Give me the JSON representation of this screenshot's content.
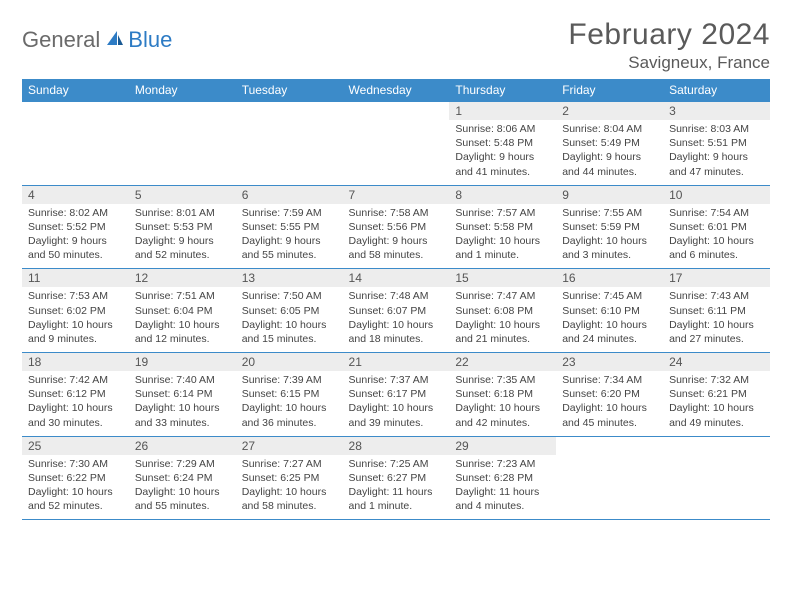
{
  "logo": {
    "part1": "General",
    "part2": "Blue"
  },
  "title": "February 2024",
  "location": "Savigneux, France",
  "colors": {
    "header_bg": "#3c8bc9",
    "header_text": "#ffffff",
    "daynum_bg": "#ededed",
    "text": "#444444",
    "logo_gray": "#6a6a6a",
    "logo_blue": "#2d7bc4",
    "rule": "#3c8bc9"
  },
  "day_headers": [
    "Sunday",
    "Monday",
    "Tuesday",
    "Wednesday",
    "Thursday",
    "Friday",
    "Saturday"
  ],
  "weeks": [
    [
      {
        "n": "",
        "sr": "",
        "ss": "",
        "dl": ""
      },
      {
        "n": "",
        "sr": "",
        "ss": "",
        "dl": ""
      },
      {
        "n": "",
        "sr": "",
        "ss": "",
        "dl": ""
      },
      {
        "n": "",
        "sr": "",
        "ss": "",
        "dl": ""
      },
      {
        "n": "1",
        "sr": "Sunrise: 8:06 AM",
        "ss": "Sunset: 5:48 PM",
        "dl": "Daylight: 9 hours and 41 minutes."
      },
      {
        "n": "2",
        "sr": "Sunrise: 8:04 AM",
        "ss": "Sunset: 5:49 PM",
        "dl": "Daylight: 9 hours and 44 minutes."
      },
      {
        "n": "3",
        "sr": "Sunrise: 8:03 AM",
        "ss": "Sunset: 5:51 PM",
        "dl": "Daylight: 9 hours and 47 minutes."
      }
    ],
    [
      {
        "n": "4",
        "sr": "Sunrise: 8:02 AM",
        "ss": "Sunset: 5:52 PM",
        "dl": "Daylight: 9 hours and 50 minutes."
      },
      {
        "n": "5",
        "sr": "Sunrise: 8:01 AM",
        "ss": "Sunset: 5:53 PM",
        "dl": "Daylight: 9 hours and 52 minutes."
      },
      {
        "n": "6",
        "sr": "Sunrise: 7:59 AM",
        "ss": "Sunset: 5:55 PM",
        "dl": "Daylight: 9 hours and 55 minutes."
      },
      {
        "n": "7",
        "sr": "Sunrise: 7:58 AM",
        "ss": "Sunset: 5:56 PM",
        "dl": "Daylight: 9 hours and 58 minutes."
      },
      {
        "n": "8",
        "sr": "Sunrise: 7:57 AM",
        "ss": "Sunset: 5:58 PM",
        "dl": "Daylight: 10 hours and 1 minute."
      },
      {
        "n": "9",
        "sr": "Sunrise: 7:55 AM",
        "ss": "Sunset: 5:59 PM",
        "dl": "Daylight: 10 hours and 3 minutes."
      },
      {
        "n": "10",
        "sr": "Sunrise: 7:54 AM",
        "ss": "Sunset: 6:01 PM",
        "dl": "Daylight: 10 hours and 6 minutes."
      }
    ],
    [
      {
        "n": "11",
        "sr": "Sunrise: 7:53 AM",
        "ss": "Sunset: 6:02 PM",
        "dl": "Daylight: 10 hours and 9 minutes."
      },
      {
        "n": "12",
        "sr": "Sunrise: 7:51 AM",
        "ss": "Sunset: 6:04 PM",
        "dl": "Daylight: 10 hours and 12 minutes."
      },
      {
        "n": "13",
        "sr": "Sunrise: 7:50 AM",
        "ss": "Sunset: 6:05 PM",
        "dl": "Daylight: 10 hours and 15 minutes."
      },
      {
        "n": "14",
        "sr": "Sunrise: 7:48 AM",
        "ss": "Sunset: 6:07 PM",
        "dl": "Daylight: 10 hours and 18 minutes."
      },
      {
        "n": "15",
        "sr": "Sunrise: 7:47 AM",
        "ss": "Sunset: 6:08 PM",
        "dl": "Daylight: 10 hours and 21 minutes."
      },
      {
        "n": "16",
        "sr": "Sunrise: 7:45 AM",
        "ss": "Sunset: 6:10 PM",
        "dl": "Daylight: 10 hours and 24 minutes."
      },
      {
        "n": "17",
        "sr": "Sunrise: 7:43 AM",
        "ss": "Sunset: 6:11 PM",
        "dl": "Daylight: 10 hours and 27 minutes."
      }
    ],
    [
      {
        "n": "18",
        "sr": "Sunrise: 7:42 AM",
        "ss": "Sunset: 6:12 PM",
        "dl": "Daylight: 10 hours and 30 minutes."
      },
      {
        "n": "19",
        "sr": "Sunrise: 7:40 AM",
        "ss": "Sunset: 6:14 PM",
        "dl": "Daylight: 10 hours and 33 minutes."
      },
      {
        "n": "20",
        "sr": "Sunrise: 7:39 AM",
        "ss": "Sunset: 6:15 PM",
        "dl": "Daylight: 10 hours and 36 minutes."
      },
      {
        "n": "21",
        "sr": "Sunrise: 7:37 AM",
        "ss": "Sunset: 6:17 PM",
        "dl": "Daylight: 10 hours and 39 minutes."
      },
      {
        "n": "22",
        "sr": "Sunrise: 7:35 AM",
        "ss": "Sunset: 6:18 PM",
        "dl": "Daylight: 10 hours and 42 minutes."
      },
      {
        "n": "23",
        "sr": "Sunrise: 7:34 AM",
        "ss": "Sunset: 6:20 PM",
        "dl": "Daylight: 10 hours and 45 minutes."
      },
      {
        "n": "24",
        "sr": "Sunrise: 7:32 AM",
        "ss": "Sunset: 6:21 PM",
        "dl": "Daylight: 10 hours and 49 minutes."
      }
    ],
    [
      {
        "n": "25",
        "sr": "Sunrise: 7:30 AM",
        "ss": "Sunset: 6:22 PM",
        "dl": "Daylight: 10 hours and 52 minutes."
      },
      {
        "n": "26",
        "sr": "Sunrise: 7:29 AM",
        "ss": "Sunset: 6:24 PM",
        "dl": "Daylight: 10 hours and 55 minutes."
      },
      {
        "n": "27",
        "sr": "Sunrise: 7:27 AM",
        "ss": "Sunset: 6:25 PM",
        "dl": "Daylight: 10 hours and 58 minutes."
      },
      {
        "n": "28",
        "sr": "Sunrise: 7:25 AM",
        "ss": "Sunset: 6:27 PM",
        "dl": "Daylight: 11 hours and 1 minute."
      },
      {
        "n": "29",
        "sr": "Sunrise: 7:23 AM",
        "ss": "Sunset: 6:28 PM",
        "dl": "Daylight: 11 hours and 4 minutes."
      },
      {
        "n": "",
        "sr": "",
        "ss": "",
        "dl": ""
      },
      {
        "n": "",
        "sr": "",
        "ss": "",
        "dl": ""
      }
    ]
  ]
}
